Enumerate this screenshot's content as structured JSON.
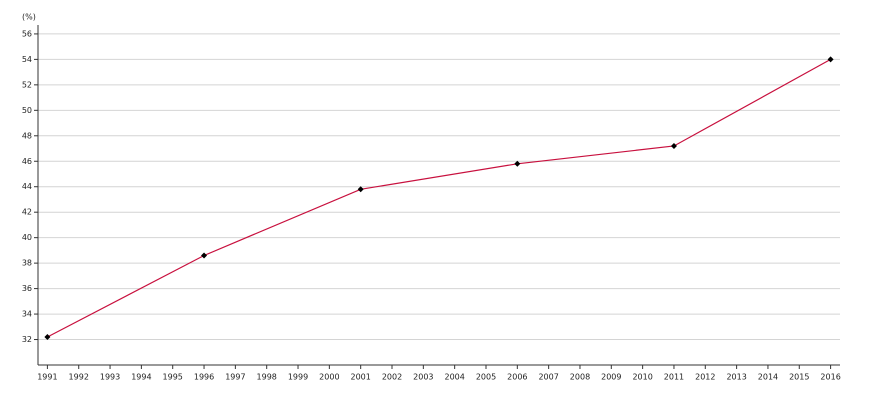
{
  "chart_data": {
    "type": "line",
    "y_label": "(%)",
    "x": [
      1991,
      1996,
      2001,
      2006,
      2011,
      2016
    ],
    "series": [
      {
        "color": "#c8103e",
        "marker_color": "#000000",
        "values": [
          32.2,
          38.6,
          43.8,
          45.8,
          47.2,
          54.0
        ]
      }
    ],
    "xlim": [
      1990.7,
      2016.3
    ],
    "xticks": [
      1991,
      1992,
      1993,
      1994,
      1995,
      1996,
      1997,
      1998,
      1999,
      2000,
      2001,
      2002,
      2003,
      2004,
      2005,
      2006,
      2007,
      2008,
      2009,
      2010,
      2011,
      2012,
      2013,
      2014,
      2015,
      2016
    ],
    "ylim": [
      30,
      56.7
    ],
    "yticks": [
      32,
      34,
      36,
      38,
      40,
      42,
      44,
      46,
      48,
      50,
      52,
      54,
      56
    ],
    "grid": true
  }
}
